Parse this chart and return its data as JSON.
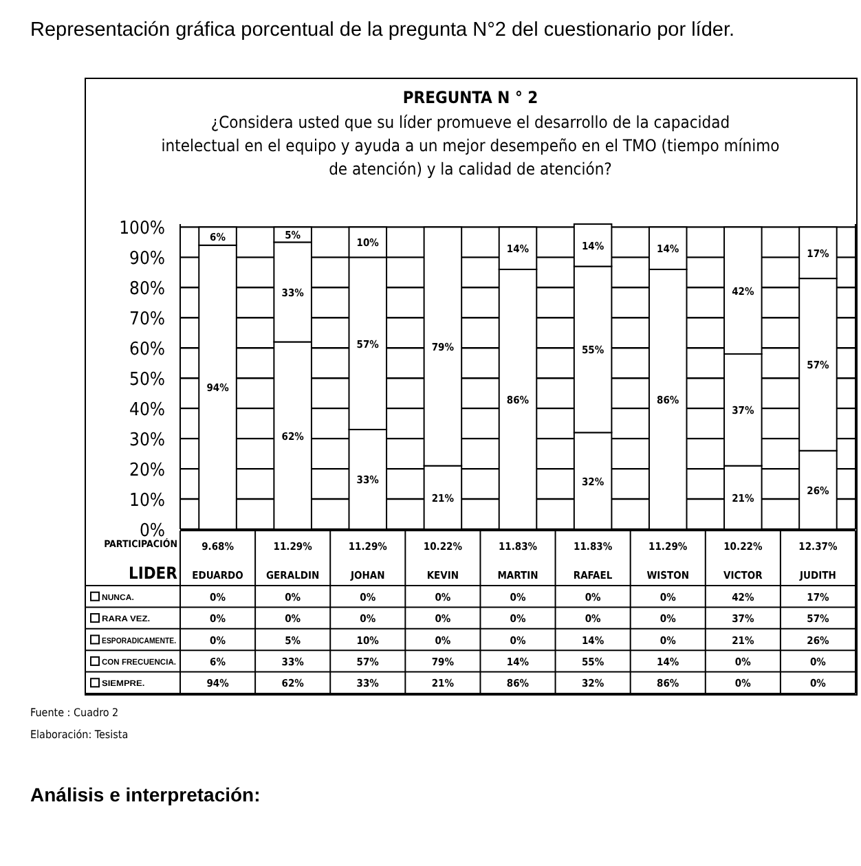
{
  "chart_data": {
    "type": "bar",
    "stacked": true,
    "title": "PREGUNTA N ° 2",
    "subtitle": "¿Considera usted que su líder promueve el desarrollo de la capacidad intelectual en el equipo y ayuda a un mejor desempeño en el TMO (tiempo mínimo de atención) y la calidad de atención?",
    "xlabel": "LIDER",
    "categories": [
      "EDUARDO",
      "GERALDIN",
      "JOHAN",
      "KEVIN",
      "MARTIN",
      "RAFAEL",
      "WISTON",
      "VICTOR",
      "JUDITH"
    ],
    "series": [
      {
        "name": "SIEMPRE.",
        "color": "#ffffff",
        "values": [
          94,
          62,
          33,
          21,
          86,
          32,
          86,
          0,
          0
        ],
        "value_labels": [
          "94%",
          "62%",
          "33%",
          "21%",
          "86%",
          "32%",
          "86%",
          "0%",
          "0%"
        ]
      },
      {
        "name": "CON FRECUENCIA.",
        "color": "#ffffff",
        "values": [
          6,
          33,
          57,
          79,
          14,
          55,
          14,
          0,
          0
        ],
        "value_labels": [
          "6%",
          "33%",
          "57%",
          "79%",
          "14%",
          "55%",
          "14%",
          "0%",
          "0%"
        ]
      },
      {
        "name": "ESPORADICAMENTE.",
        "color": "#ffffff",
        "values": [
          0,
          5,
          10,
          0,
          0,
          14,
          0,
          21,
          26
        ],
        "value_labels": [
          "0%",
          "5%",
          "10%",
          "0%",
          "0%",
          "14%",
          "0%",
          "21%",
          "26%"
        ]
      },
      {
        "name": "RARA VEZ.",
        "color": "#ffffff",
        "values": [
          0,
          0,
          0,
          0,
          0,
          0,
          0,
          37,
          57
        ],
        "value_labels": [
          "0%",
          "0%",
          "0%",
          "0%",
          "0%",
          "0%",
          "0%",
          "37%",
          "57%"
        ]
      },
      {
        "name": "NUNCA.",
        "color": "#ffffff",
        "values": [
          0,
          0,
          0,
          0,
          0,
          0,
          0,
          42,
          17
        ],
        "value_labels": [
          "0%",
          "0%",
          "0%",
          "0%",
          "0%",
          "0%",
          "0%",
          "42%",
          "17%"
        ]
      }
    ],
    "ylim": [
      0,
      101
    ],
    "yticks": [
      {
        "value": 0,
        "label": "0%"
      },
      {
        "value": 10,
        "label": "10%"
      },
      {
        "value": 20,
        "label": "20%"
      },
      {
        "value": 30,
        "label": "30%"
      },
      {
        "value": 40,
        "label": "40%"
      },
      {
        "value": 50,
        "label": "50%"
      },
      {
        "value": 60,
        "label": "60%"
      },
      {
        "value": 70,
        "label": "70%"
      },
      {
        "value": 80,
        "label": "80%"
      },
      {
        "value": 90,
        "label": "90%"
      },
      {
        "value": 100,
        "label": "100%"
      }
    ],
    "grid": "y",
    "legend": "bottom",
    "annotations": [
      "Representación gráfica porcentual de la pregunta N°2 del cuestionario por líder.",
      "PARTICIPACIÓN",
      "Fuente    : Cuadro 2",
      "Elaboración: Tesista",
      "Análisis e interpretación:",
      "9.68%",
      "11.29%",
      "11.29%",
      "10.22%",
      "11.83%",
      "11.83%",
      "11.29%",
      "10.22%",
      "12.37%"
    ]
  }
}
